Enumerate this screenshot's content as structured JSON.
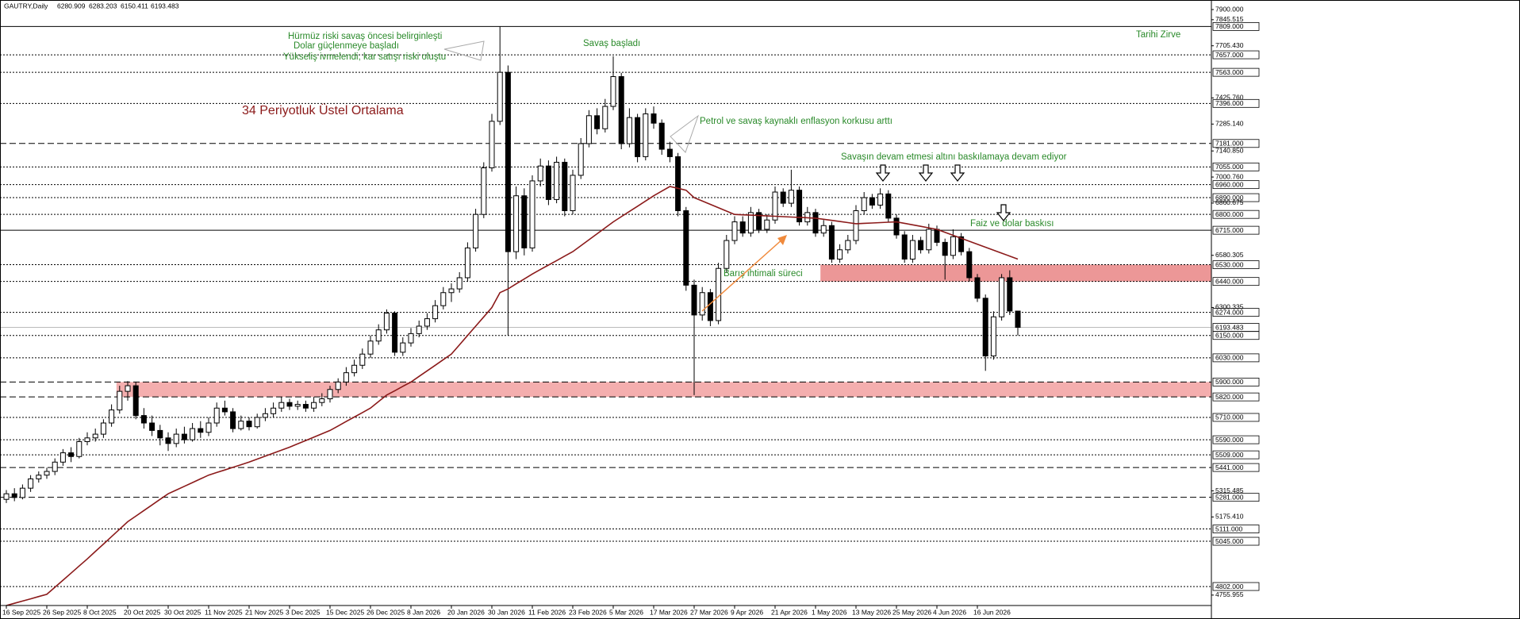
{
  "chart_data": {
    "type": "candlestick",
    "title": "GAUTRY,Daily",
    "up_color": "#ffffff",
    "down_color": "#000000",
    "annotation_color": "#2a8a2a",
    "arrow_color": "#f08a3c",
    "ylim": [
      4700,
      7930
    ],
    "categories": [
      "16 Sep 2025",
      null,
      null,
      null,
      null,
      "26 Sep 2025",
      null,
      null,
      null,
      null,
      "8 Oct 2025",
      null,
      null,
      null,
      null,
      "20 Oct 2025",
      null,
      null,
      null,
      null,
      "30 Oct 2025",
      null,
      null,
      null,
      null,
      "11 Nov 2025",
      null,
      null,
      null,
      null,
      "21 Nov 2025",
      null,
      null,
      null,
      null,
      "3 Dec 2025",
      null,
      null,
      null,
      null,
      "15 Dec 2025",
      null,
      null,
      null,
      null,
      "26 Dec 2025",
      null,
      null,
      null,
      null,
      "8 Jan 2026",
      null,
      null,
      null,
      null,
      "20 Jan 2026",
      null,
      null,
      null,
      null,
      "30 Jan 2026",
      null,
      null,
      null,
      null,
      "11 Feb 2026",
      null,
      null,
      null,
      null,
      "23 Feb 2026",
      null,
      null,
      null,
      null,
      "5 Mar 2026",
      null,
      null,
      null,
      null,
      "17 Mar 2026",
      null,
      null,
      null,
      null,
      "27 Mar 2026",
      null,
      null,
      null,
      null,
      "9 Apr 2026",
      null,
      null,
      null,
      null,
      "21 Apr 2026",
      null,
      null,
      null,
      null,
      "1 May 2026",
      null,
      null,
      null,
      null,
      "13 May 2026",
      null,
      null,
      null,
      null,
      "25 May 2026",
      null,
      null,
      null,
      null,
      "4 Jun 2026",
      null,
      null,
      null,
      null,
      "16 Jun 2026",
      null,
      null,
      null,
      null,
      null
    ],
    "candles": [
      [
        5270,
        5320,
        5250,
        5300
      ],
      [
        5300,
        5330,
        5260,
        5280
      ],
      [
        5280,
        5350,
        5270,
        5330
      ],
      [
        5330,
        5400,
        5310,
        5380
      ],
      [
        5380,
        5420,
        5360,
        5400
      ],
      [
        5400,
        5440,
        5380,
        5420
      ],
      [
        5420,
        5490,
        5400,
        5470
      ],
      [
        5470,
        5540,
        5450,
        5520
      ],
      [
        5520,
        5550,
        5470,
        5500
      ],
      [
        5500,
        5600,
        5490,
        5580
      ],
      [
        5580,
        5630,
        5560,
        5600
      ],
      [
        5600,
        5650,
        5580,
        5620
      ],
      [
        5620,
        5700,
        5600,
        5680
      ],
      [
        5680,
        5780,
        5660,
        5750
      ],
      [
        5750,
        5880,
        5730,
        5850
      ],
      [
        5850,
        5905,
        5800,
        5880
      ],
      [
        5880,
        5900,
        5700,
        5720
      ],
      [
        5720,
        5760,
        5650,
        5680
      ],
      [
        5680,
        5720,
        5610,
        5640
      ],
      [
        5640,
        5670,
        5560,
        5600
      ],
      [
        5600,
        5630,
        5530,
        5570
      ],
      [
        5570,
        5650,
        5550,
        5620
      ],
      [
        5620,
        5660,
        5570,
        5590
      ],
      [
        5590,
        5680,
        5580,
        5650
      ],
      [
        5650,
        5690,
        5600,
        5630
      ],
      [
        5630,
        5710,
        5610,
        5680
      ],
      [
        5680,
        5790,
        5660,
        5760
      ],
      [
        5760,
        5800,
        5720,
        5740
      ],
      [
        5740,
        5760,
        5630,
        5650
      ],
      [
        5650,
        5720,
        5640,
        5690
      ],
      [
        5690,
        5710,
        5640,
        5660
      ],
      [
        5660,
        5730,
        5650,
        5710
      ],
      [
        5710,
        5760,
        5690,
        5730
      ],
      [
        5730,
        5790,
        5710,
        5760
      ],
      [
        5760,
        5820,
        5740,
        5790
      ],
      [
        5790,
        5810,
        5750,
        5770
      ],
      [
        5770,
        5800,
        5750,
        5780
      ],
      [
        5780,
        5800,
        5740,
        5760
      ],
      [
        5760,
        5820,
        5740,
        5790
      ],
      [
        5790,
        5840,
        5770,
        5810
      ],
      [
        5810,
        5880,
        5790,
        5860
      ],
      [
        5860,
        5920,
        5840,
        5900
      ],
      [
        5900,
        5980,
        5880,
        5950
      ],
      [
        5950,
        6020,
        5930,
        5990
      ],
      [
        5990,
        6080,
        5970,
        6050
      ],
      [
        6050,
        6150,
        6030,
        6120
      ],
      [
        6120,
        6210,
        6100,
        6180
      ],
      [
        6180,
        6290,
        6160,
        6270
      ],
      [
        6270,
        6280,
        6040,
        6060
      ],
      [
        6060,
        6140,
        6040,
        6110
      ],
      [
        6110,
        6190,
        6090,
        6160
      ],
      [
        6160,
        6230,
        6140,
        6200
      ],
      [
        6200,
        6270,
        6180,
        6240
      ],
      [
        6240,
        6340,
        6220,
        6310
      ],
      [
        6310,
        6410,
        6290,
        6380
      ],
      [
        6380,
        6430,
        6330,
        6400
      ],
      [
        6400,
        6490,
        6380,
        6460
      ],
      [
        6460,
        6650,
        6440,
        6620
      ],
      [
        6620,
        6830,
        6600,
        6800
      ],
      [
        6800,
        7080,
        6780,
        7050
      ],
      [
        7050,
        7340,
        7030,
        7300
      ],
      [
        7300,
        7809,
        7280,
        7563
      ],
      [
        7563,
        7600,
        6150,
        6600
      ],
      [
        6600,
        6950,
        6560,
        6900
      ],
      [
        6900,
        6940,
        6580,
        6620
      ],
      [
        6620,
        7010,
        6600,
        6980
      ],
      [
        6980,
        7100,
        6950,
        7060
      ],
      [
        7060,
        7090,
        6850,
        6880
      ],
      [
        6880,
        7110,
        6860,
        7080
      ],
      [
        7080,
        7100,
        6790,
        6820
      ],
      [
        6820,
        7040,
        6800,
        7010
      ],
      [
        7010,
        7210,
        6990,
        7180
      ],
      [
        7180,
        7360,
        7160,
        7330
      ],
      [
        7330,
        7370,
        7230,
        7260
      ],
      [
        7260,
        7420,
        7240,
        7380
      ],
      [
        7380,
        7650,
        7360,
        7540
      ],
      [
        7540,
        7560,
        7150,
        7180
      ],
      [
        7180,
        7370,
        7160,
        7320
      ],
      [
        7320,
        7340,
        7080,
        7110
      ],
      [
        7110,
        7370,
        7090,
        7340
      ],
      [
        7340,
        7380,
        7260,
        7290
      ],
      [
        7290,
        7310,
        7120,
        7150
      ],
      [
        7150,
        7190,
        7080,
        7110
      ],
      [
        7110,
        7130,
        6790,
        6820
      ],
      [
        6820,
        6840,
        6390,
        6420
      ],
      [
        6420,
        6450,
        5830,
        6260
      ],
      [
        6260,
        6410,
        6230,
        6380
      ],
      [
        6380,
        6400,
        6200,
        6230
      ],
      [
        6230,
        6540,
        6210,
        6510
      ],
      [
        6510,
        6690,
        6490,
        6660
      ],
      [
        6660,
        6790,
        6640,
        6760
      ],
      [
        6760,
        6790,
        6680,
        6700
      ],
      [
        6700,
        6840,
        6680,
        6810
      ],
      [
        6810,
        6830,
        6700,
        6720
      ],
      [
        6720,
        6800,
        6700,
        6770
      ],
      [
        6770,
        6950,
        6750,
        6920
      ],
      [
        6920,
        6940,
        6840,
        6860
      ],
      [
        6860,
        7040,
        6840,
        6930
      ],
      [
        6930,
        6950,
        6740,
        6760
      ],
      [
        6760,
        6840,
        6740,
        6810
      ],
      [
        6810,
        6830,
        6680,
        6700
      ],
      [
        6700,
        6770,
        6680,
        6740
      ],
      [
        6740,
        6760,
        6540,
        6560
      ],
      [
        6560,
        6640,
        6540,
        6610
      ],
      [
        6610,
        6690,
        6590,
        6660
      ],
      [
        6660,
        6850,
        6640,
        6820
      ],
      [
        6820,
        6920,
        6800,
        6890
      ],
      [
        6890,
        6910,
        6830,
        6850
      ],
      [
        6850,
        6940,
        6830,
        6910
      ],
      [
        6910,
        6930,
        6760,
        6780
      ],
      [
        6780,
        6800,
        6670,
        6690
      ],
      [
        6690,
        6710,
        6540,
        6560
      ],
      [
        6560,
        6690,
        6540,
        6660
      ],
      [
        6660,
        6680,
        6590,
        6610
      ],
      [
        6610,
        6750,
        6590,
        6720
      ],
      [
        6720,
        6740,
        6630,
        6650
      ],
      [
        6650,
        6670,
        6450,
        6580
      ],
      [
        6580,
        6720,
        6560,
        6680
      ],
      [
        6680,
        6700,
        6580,
        6600
      ],
      [
        6600,
        6620,
        6440,
        6460
      ],
      [
        6460,
        6480,
        6330,
        6350
      ],
      [
        6350,
        6370,
        5960,
        6040
      ],
      [
        6040,
        6280,
        6020,
        6250
      ],
      [
        6250,
        6480,
        6230,
        6460
      ],
      [
        6460,
        6500,
        6260,
        6281
      ],
      [
        6280.909,
        6283.203,
        6150.411,
        6193.483
      ]
    ],
    "series": [
      {
        "name": "34 Periyotluk Üstel Ortalama",
        "color": "#8b1a1a",
        "values": [
          4700,
          4712,
          4724,
          4736,
          4748,
          4760,
          4798,
          4836,
          4874,
          4912,
          4950,
          4990,
          5030,
          5070,
          5110,
          5150,
          5180,
          5210,
          5240,
          5270,
          5300,
          5320,
          5340,
          5360,
          5380,
          5400,
          5414,
          5428,
          5442,
          5456,
          5470,
          5486,
          5502,
          5518,
          5534,
          5550,
          5568,
          5586,
          5604,
          5622,
          5640,
          5664,
          5688,
          5712,
          5736,
          5760,
          5795,
          5830,
          5853,
          5877,
          5900,
          5930,
          5960,
          5990,
          6020,
          6050,
          6100,
          6150,
          6200,
          6250,
          6300,
          6380,
          6400,
          6427,
          6453,
          6480,
          6504,
          6528,
          6552,
          6576,
          6600,
          6632,
          6664,
          6696,
          6728,
          6760,
          6788,
          6816,
          6844,
          6872,
          6900,
          6925,
          6950,
          6940,
          6930,
          6890,
          6872,
          6854,
          6836,
          6818,
          6800,
          6798,
          6796,
          6794,
          6792,
          6790,
          6788,
          6786,
          6784,
          6782,
          6780,
          6774,
          6768,
          6762,
          6756,
          6750,
          6752,
          6754,
          6756,
          6758,
          6760,
          6752,
          6744,
          6736,
          6728,
          6720,
          6704,
          6688,
          6672,
          6656,
          6640,
          6624,
          6608,
          6592,
          6576,
          6560
        ]
      }
    ],
    "yticks": [
      {
        "value": 7900,
        "label": "7900.000"
      },
      {
        "value": 7845.515,
        "label": "7845.515"
      },
      {
        "value": 7705.43,
        "label": "7705.430"
      },
      {
        "value": 7425.76,
        "label": "7425.760"
      },
      {
        "value": 7285.14,
        "label": "7285.140"
      },
      {
        "value": 7140.85,
        "label": "7140.850"
      },
      {
        "value": 7000.76,
        "label": "7000.760"
      },
      {
        "value": 6860.675,
        "label": "6860.675"
      },
      {
        "value": 6580.305,
        "label": "6580.305"
      },
      {
        "value": 6300.335,
        "label": "6300.335"
      },
      {
        "value": 5315.485,
        "label": "5315.485"
      },
      {
        "value": 5175.41,
        "label": "5175.410"
      },
      {
        "value": 4755.955,
        "label": "4755.955"
      }
    ],
    "levels": [
      {
        "value": 7809,
        "label": "7809.000",
        "style": "solid"
      },
      {
        "value": 7657,
        "label": "7657.000",
        "style": "dotted"
      },
      {
        "value": 7563,
        "label": "7563.000",
        "style": "dotted"
      },
      {
        "value": 7396,
        "label": "7396.000",
        "style": "dotted"
      },
      {
        "value": 7181,
        "label": "7181.000",
        "style": "dashed"
      },
      {
        "value": 7055,
        "label": "7055.000",
        "style": "dotted"
      },
      {
        "value": 6960,
        "label": "6960.000",
        "style": "dotted"
      },
      {
        "value": 6890,
        "label": "6890.000",
        "style": "dotted"
      },
      {
        "value": 6800,
        "label": "6800.000",
        "style": "dotted"
      },
      {
        "value": 6715,
        "label": "6715.000",
        "style": "solid"
      },
      {
        "value": 6530,
        "label": "6530.000",
        "style": "dotted"
      },
      {
        "value": 6440,
        "label": "6440.000",
        "style": "dotted"
      },
      {
        "value": 6274,
        "label": "6274.000",
        "style": "dotted"
      },
      {
        "value": 6150,
        "label": "6150.000",
        "style": "dotted"
      },
      {
        "value": 6030,
        "label": "6030.000",
        "style": "dotted"
      },
      {
        "value": 5900,
        "label": "5900.000",
        "style": "dashed"
      },
      {
        "value": 5820,
        "label": "5820.000",
        "style": "dashed"
      },
      {
        "value": 5710,
        "label": "5710.000",
        "style": "dotted"
      },
      {
        "value": 5590,
        "label": "5590.000",
        "style": "dotted"
      },
      {
        "value": 5509,
        "label": "5509.000",
        "style": "dotted"
      },
      {
        "value": 5441,
        "label": "5441.000",
        "style": "dashed"
      },
      {
        "value": 5281,
        "label": "5281.000",
        "style": "dashed"
      },
      {
        "value": 5111,
        "label": "5111.000",
        "style": "dotted"
      },
      {
        "value": 5045,
        "label": "5045.000",
        "style": "dotted"
      },
      {
        "value": 4802,
        "label": "4802.000",
        "style": "dotted"
      }
    ],
    "zones": [
      {
        "low": 5820,
        "high": 5900,
        "from_candle": 14,
        "color": "#f2a0a0"
      },
      {
        "low": 6440,
        "high": 6530,
        "from_candle": 101,
        "color": "#e98585"
      }
    ],
    "annotations": [
      "Hürmüz riski savaş öncesi belirginleşti",
      "Dolar güçlenmeye başladı",
      "Yükseliş ivmelendi, kar satışı riski oluştu",
      "Savaş başladı",
      "Petrol ve savaş kaynaklı enflasyon korkusu arttı",
      "Savaşın devam etmesi altını baskılamaya devam ediyor",
      "Barış ihtimali süreci",
      "Faiz ve dolar baskısı",
      "Tarihi Zirve"
    ]
  }
}
